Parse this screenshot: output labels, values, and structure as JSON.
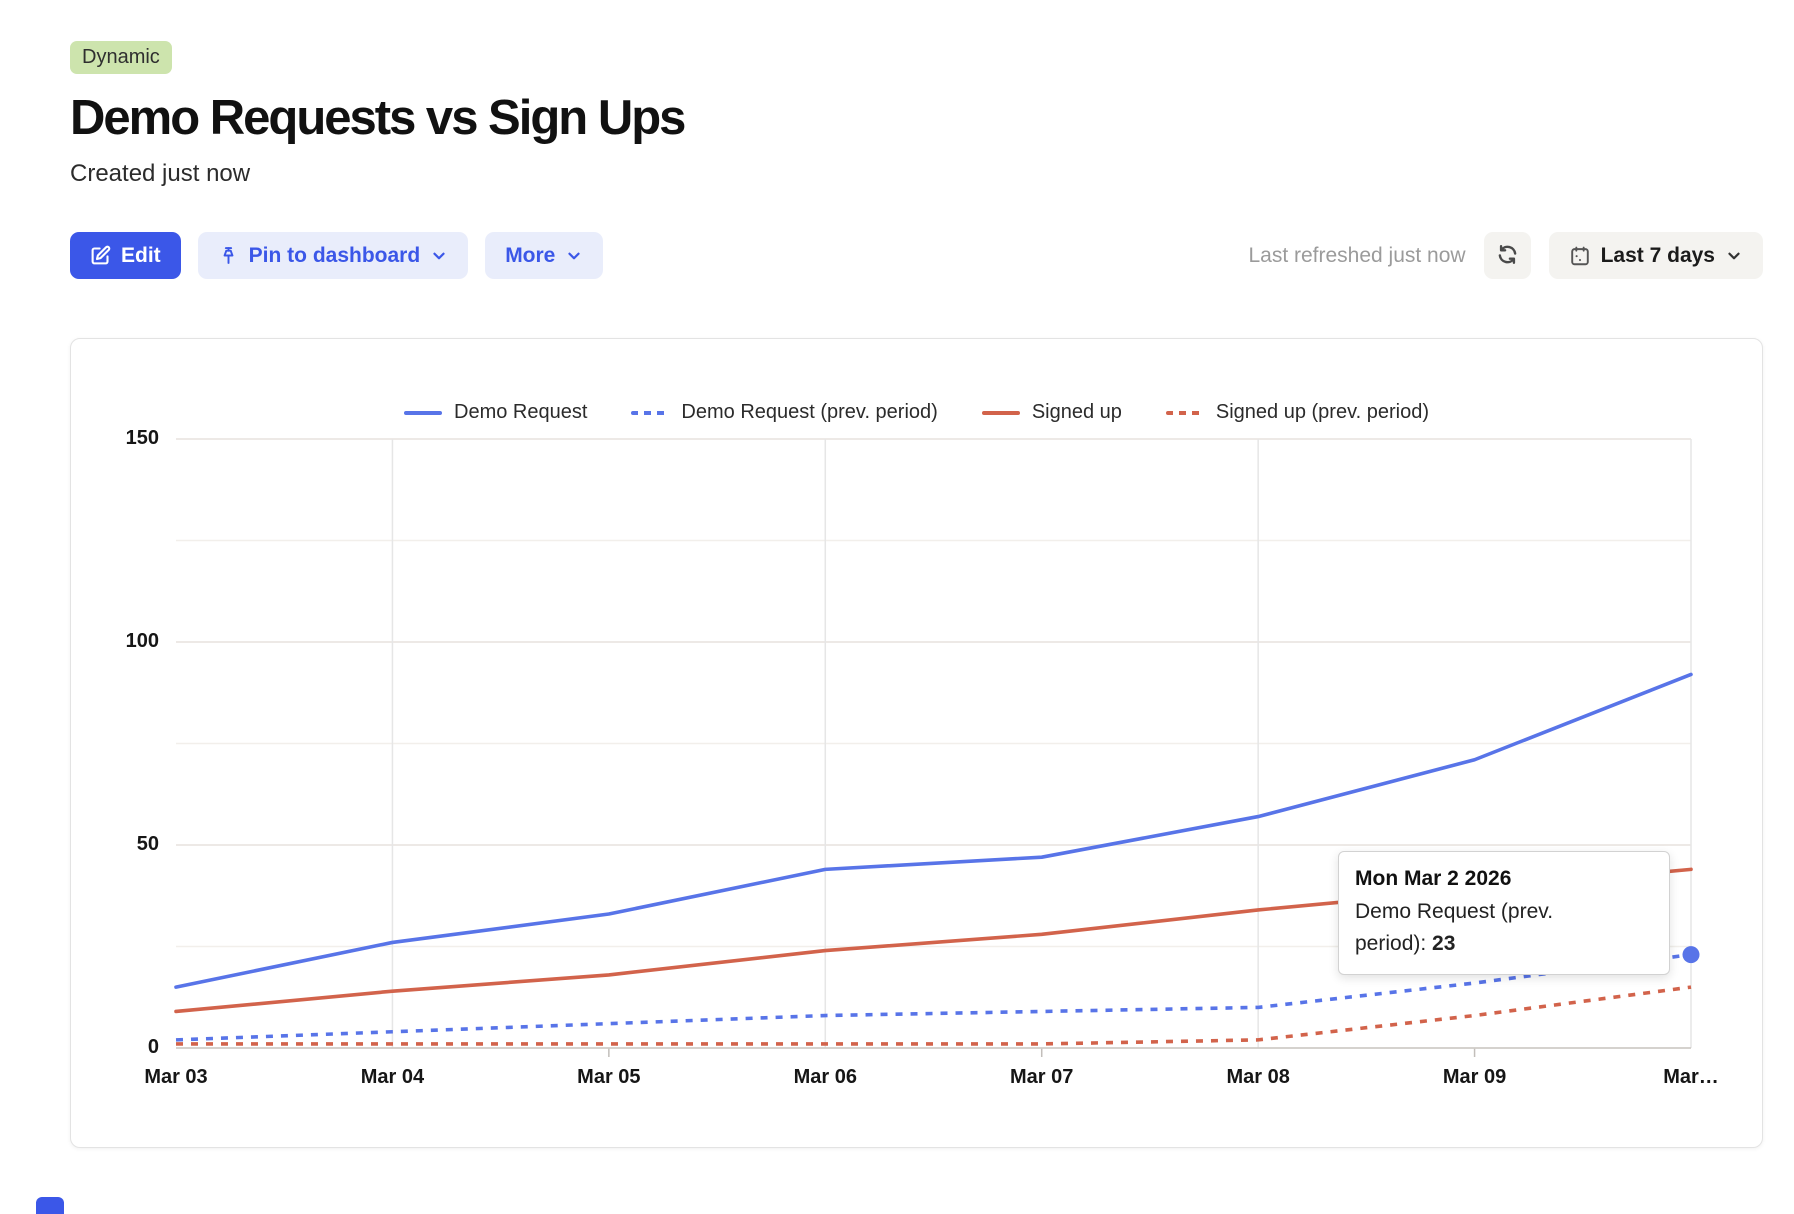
{
  "page": {
    "badge": "Dynamic",
    "title": "Demo Requests vs Sign Ups",
    "subtitle": "Created just now"
  },
  "toolbar": {
    "edit_label": "Edit",
    "pin_label": "Pin to dashboard",
    "more_label": "More",
    "last_refreshed": "Last refreshed just now",
    "date_range_label": "Last 7 days"
  },
  "tooltip": {
    "date": "Mon Mar 2 2026",
    "series_label": "Demo Request (prev. period):",
    "value": "23"
  },
  "colors": {
    "accent_blue": "#3b57e8",
    "soft_blue_bg": "#e9edfb",
    "badge_green": "#cde4ad",
    "chart_blue": "#5874e8",
    "chart_red": "#d2634b",
    "grid_major": "#e7e2dd",
    "grid_minor": "#f2efeb",
    "grid_vertical": "#e6e6e6",
    "axis_line": "#cfcbc7"
  },
  "chart_data": {
    "type": "line",
    "title": "",
    "xlabel": "",
    "ylabel": "",
    "x": [
      "Mar 03",
      "Mar 04",
      "Mar 05",
      "Mar 06",
      "Mar 07",
      "Mar 08",
      "Mar 09",
      "Mar…"
    ],
    "ylim": [
      0,
      150
    ],
    "yticks": [
      0,
      50,
      100,
      150
    ],
    "yticks_minor": [
      25,
      75,
      125
    ],
    "grid": true,
    "legend_position": "top",
    "series": [
      {
        "name": "Demo Request",
        "style": "solid",
        "color": "#5874e8",
        "values": [
          15,
          26,
          33,
          44,
          47,
          57,
          71,
          92
        ]
      },
      {
        "name": "Demo Request (prev. period)",
        "style": "dashed",
        "color": "#5874e8",
        "values": [
          2,
          4,
          6,
          8,
          9,
          10,
          16,
          23
        ],
        "end_marker": true
      },
      {
        "name": "Signed up",
        "style": "solid",
        "color": "#d2634b",
        "values": [
          9,
          14,
          18,
          24,
          28,
          34,
          39,
          44
        ]
      },
      {
        "name": "Signed up (prev. period)",
        "style": "dashed",
        "color": "#d2634b",
        "values": [
          1,
          1,
          1,
          1,
          1,
          2,
          8,
          15
        ]
      }
    ]
  }
}
